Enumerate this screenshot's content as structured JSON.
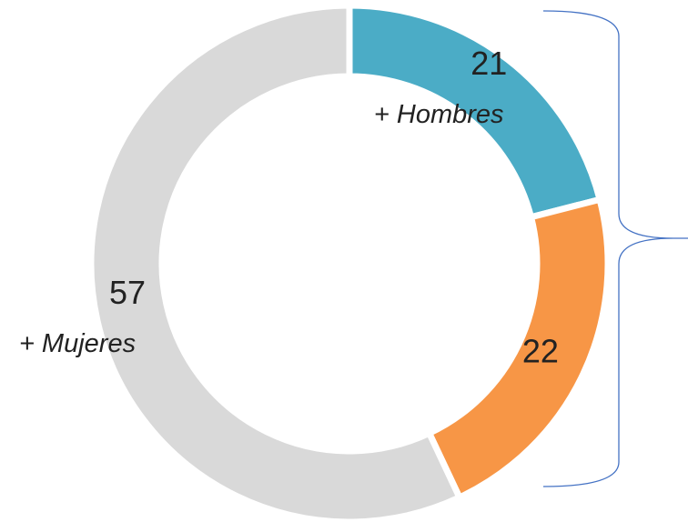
{
  "chart_data": {
    "type": "donut",
    "categories": [
      "+ Hombres",
      null,
      "+ Mujeres"
    ],
    "values": [
      21,
      22,
      57
    ],
    "colors": [
      "#4bacc6",
      "#f79646",
      "#d9d9d9"
    ]
  }
}
